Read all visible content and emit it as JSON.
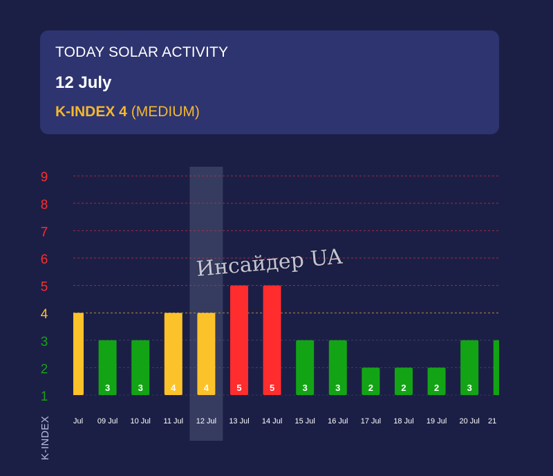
{
  "header": {
    "title": "TODAY SOLAR ACTIVITY",
    "date": "12 July",
    "kindex_label": "K-INDEX 4",
    "kindex_level": "(MEDIUM)"
  },
  "watermark": "Инсайдер UA",
  "colors": {
    "background": "#1c1f45",
    "card": "#2e3470",
    "low": "#13a416",
    "medium": "#fcc22a",
    "high": "#ff2d2d",
    "highlight": "#3a3f63"
  },
  "chart_data": {
    "type": "bar",
    "ylabel": "K-INDEX",
    "ylim": [
      1,
      9
    ],
    "yticks": [
      1,
      2,
      3,
      4,
      5,
      6,
      7,
      8,
      9
    ],
    "categories": [
      "Jul",
      "09 Jul",
      "10 Jul",
      "11 Jul",
      "12 Jul",
      "13 Jul",
      "14 Jul",
      "15 Jul",
      "16 Jul",
      "17 Jul",
      "18 Jul",
      "19 Jul",
      "20 Jul",
      "21"
    ],
    "values": [
      4,
      3,
      3,
      4,
      4,
      5,
      5,
      3,
      3,
      2,
      2,
      2,
      3,
      3
    ],
    "data_labels": [
      "",
      "3",
      "3",
      "4",
      "4",
      "5",
      "5",
      "3",
      "3",
      "2",
      "2",
      "2",
      "3",
      ""
    ],
    "highlighted_category": "12 Jul",
    "dashed_gridlines": [
      4,
      5,
      6,
      7,
      8,
      9
    ],
    "grid": true,
    "legend": "none"
  }
}
